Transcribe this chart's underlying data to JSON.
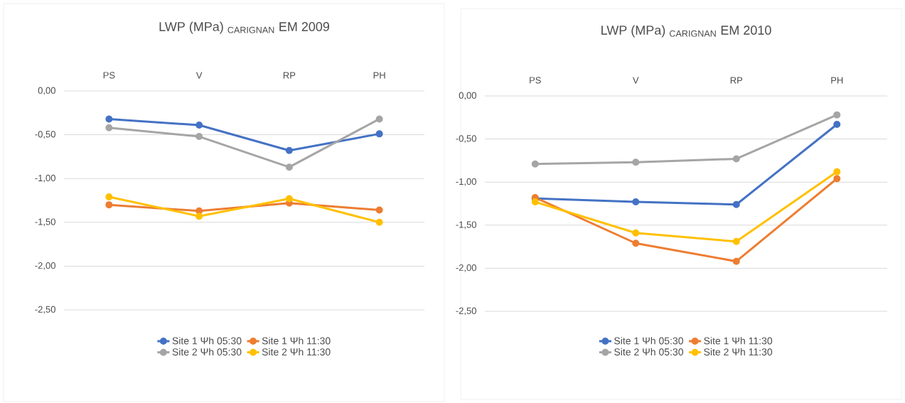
{
  "chart_data": [
    {
      "type": "line",
      "title": "LWP (MPa) $_{CARIGNAN}$ EM 2009",
      "categories": [
        "PS",
        "V",
        "RP",
        "PH"
      ],
      "series": [
        {
          "name": "Site 1 Ψh 05:30",
          "color": "#4472c4",
          "values": [
            -0.32,
            -0.39,
            -0.68,
            -0.49
          ]
        },
        {
          "name": "Site 1 Ψh 11:30",
          "color": "#ed7d31",
          "values": [
            -1.3,
            -1.37,
            -1.28,
            -1.36
          ]
        },
        {
          "name": "Site 2 Ψh 05:30",
          "color": "#a5a5a5",
          "values": [
            -0.42,
            -0.52,
            -0.87,
            -0.32
          ]
        },
        {
          "name": "Site 2 Ψh 11:30",
          "color": "#ffc000",
          "values": [
            -1.21,
            -1.43,
            -1.23,
            -1.5
          ]
        }
      ],
      "ylim": [
        -2.5,
        0
      ],
      "yticks": [
        {
          "value": 0,
          "label": "0,00"
        },
        {
          "value": -0.5,
          "label": "-0,50"
        },
        {
          "value": -1,
          "label": "-1,00"
        },
        {
          "value": -1.5,
          "label": "-1,50"
        },
        {
          "value": -2,
          "label": "-2,00"
        },
        {
          "value": -2.5,
          "label": "-2,50"
        }
      ],
      "grid": "y",
      "legend": "bottom",
      "marker": "circle",
      "line_style": "solid"
    },
    {
      "type": "line",
      "title": "LWP (MPa) $_{CARIGNAN}$ EM 2010",
      "categories": [
        "PS",
        "V",
        "RP",
        "PH"
      ],
      "series": [
        {
          "name": "Site 1 Ψh 05:30",
          "color": "#4472c4",
          "values": [
            -1.19,
            -1.23,
            -1.26,
            -0.33
          ]
        },
        {
          "name": "Site 1 Ψh 11:30",
          "color": "#ed7d31",
          "values": [
            -1.18,
            -1.71,
            -1.92,
            -0.96
          ]
        },
        {
          "name": "Site 2 Ψh 05:30",
          "color": "#a5a5a5",
          "values": [
            -0.79,
            -0.77,
            -0.73,
            -0.22
          ]
        },
        {
          "name": "Site 2 Ψh 11:30",
          "color": "#ffc000",
          "values": [
            -1.23,
            -1.59,
            -1.69,
            -0.88
          ]
        }
      ],
      "ylim": [
        -2.5,
        0
      ],
      "yticks": [
        {
          "value": 0,
          "label": "0,00"
        },
        {
          "value": -0.5,
          "label": "-0,50"
        },
        {
          "value": -1,
          "label": "-1,00"
        },
        {
          "value": -1.5,
          "label": "-1,50"
        },
        {
          "value": -2,
          "label": "-2,00"
        },
        {
          "value": -2.5,
          "label": "-2,50"
        }
      ],
      "grid": "y",
      "legend": "bottom",
      "marker": "circle",
      "line_style": "solid"
    }
  ]
}
